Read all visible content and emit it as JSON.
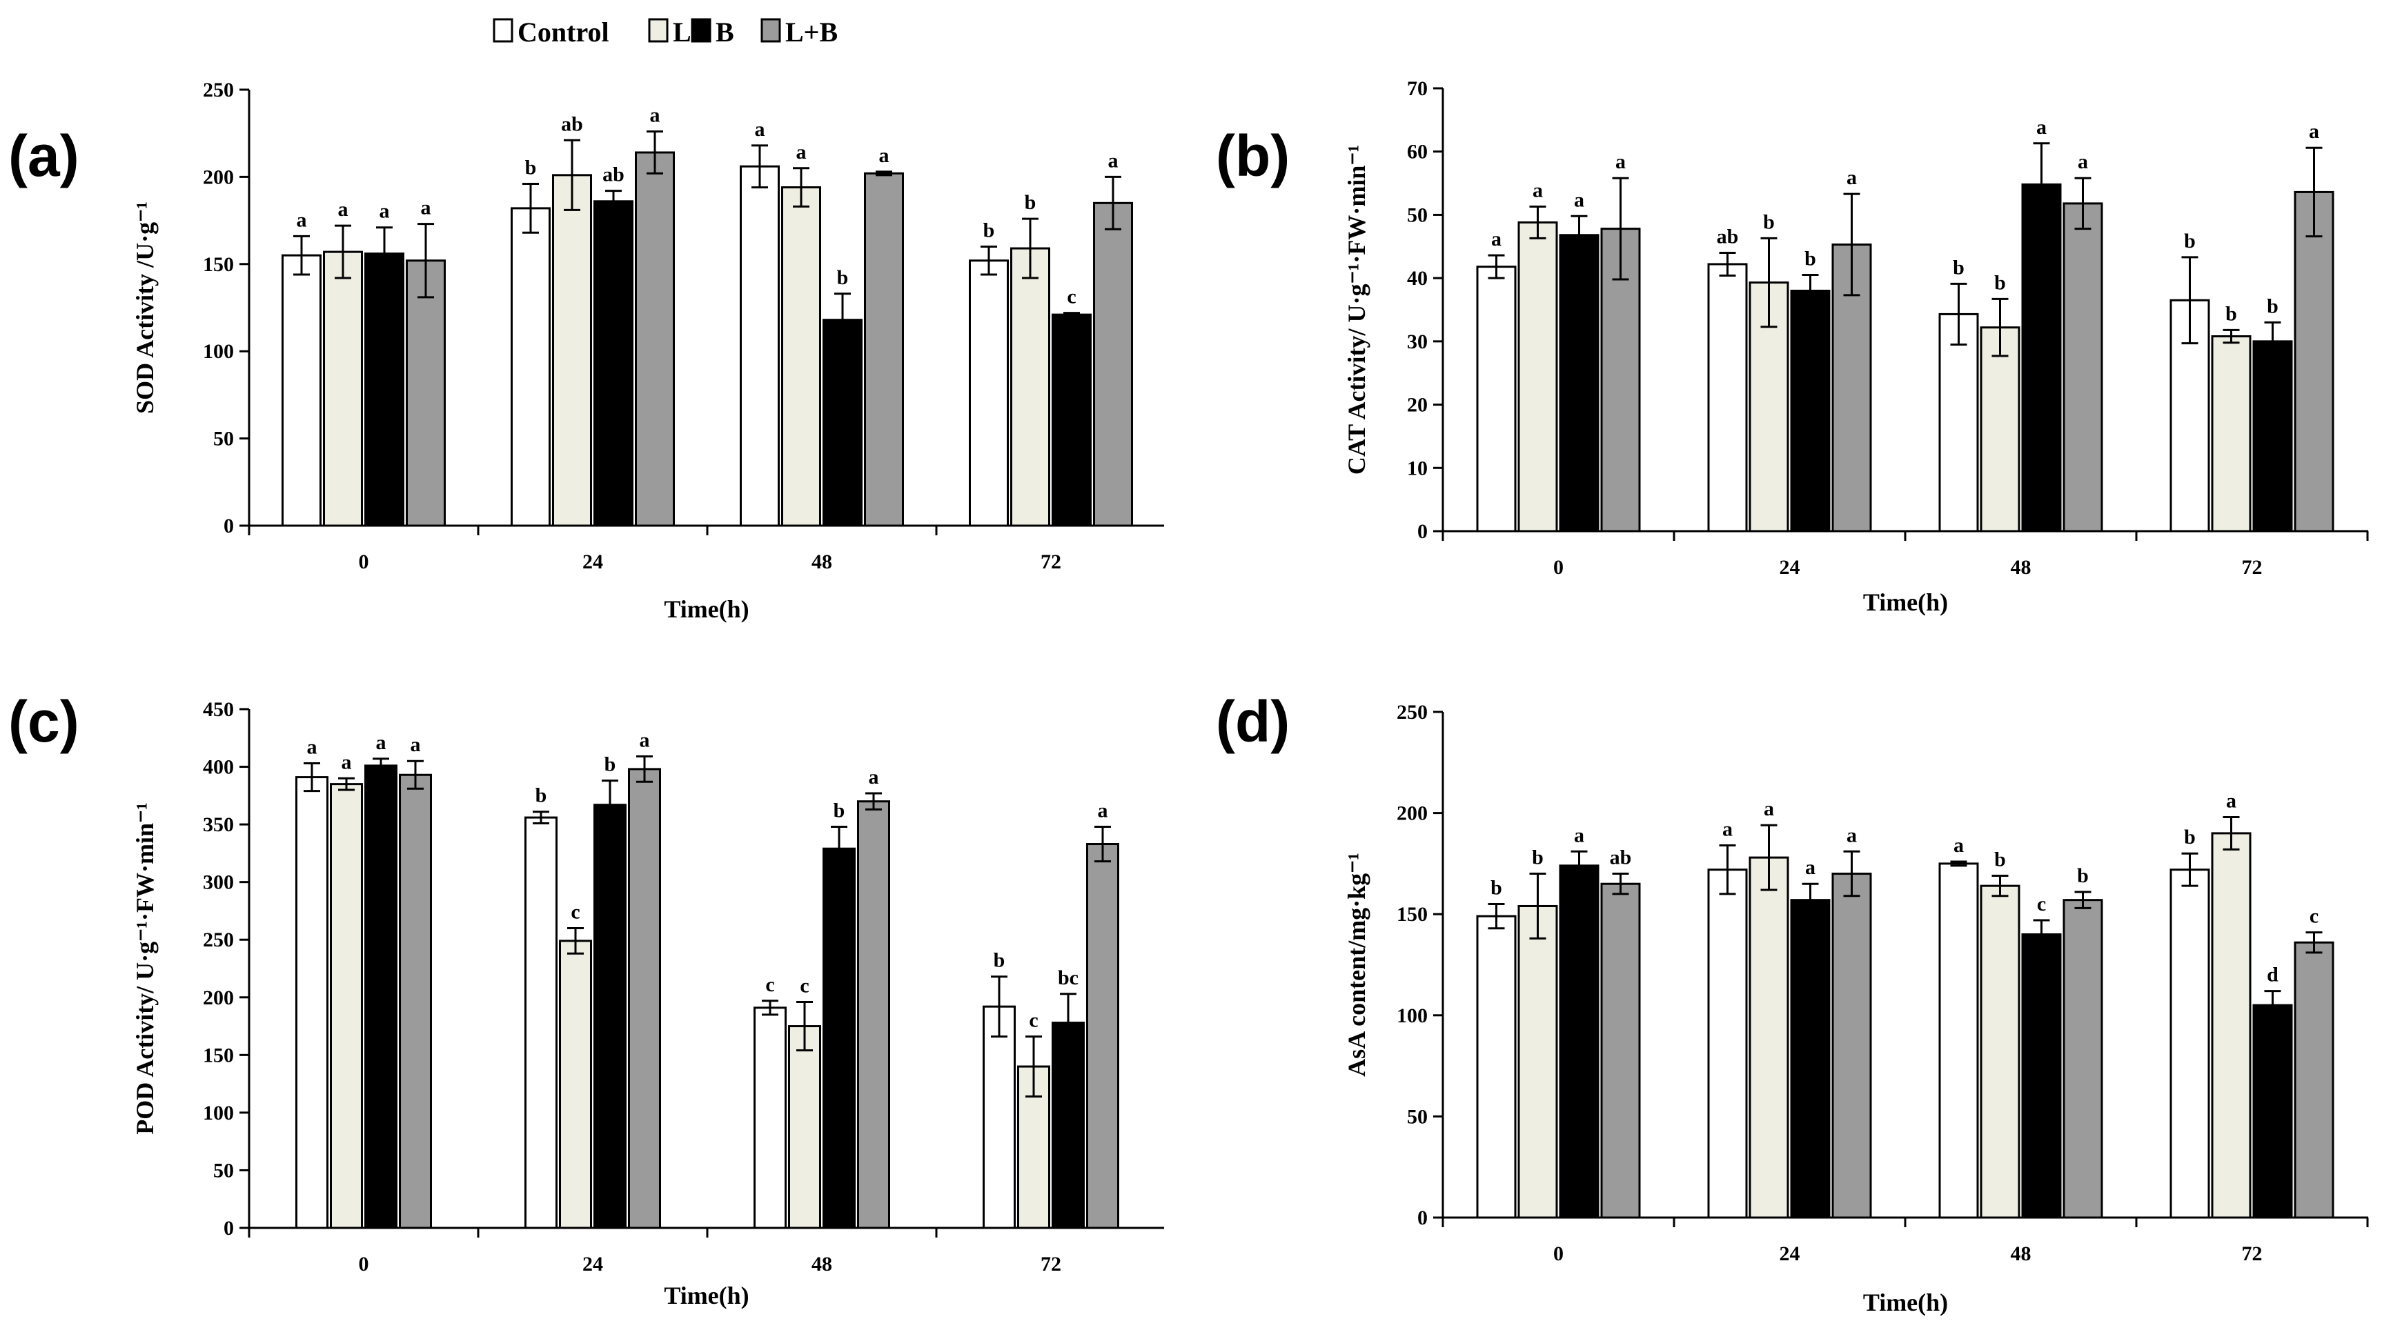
{
  "legend": {
    "entries": [
      "Control",
      "L",
      "B",
      "L+B"
    ]
  },
  "colors": {
    "Control": "#ffffff",
    "L": "#eeeee2",
    "B": "#000000",
    "L+B": "#9b9b9b",
    "stroke": "#000000"
  },
  "chart_data": [
    {
      "type": "bar",
      "panel_label": "(a)",
      "title": "",
      "xlabel": "Time(h)",
      "ylabel": "SOD Activity /U·g⁻¹",
      "categories": [
        "0",
        "24",
        "48",
        "72"
      ],
      "ylim": [
        0,
        250
      ],
      "yticks": [
        0,
        50,
        100,
        150,
        200,
        250
      ],
      "grid": false,
      "series": [
        {
          "name": "Control",
          "values": [
            155,
            182,
            206,
            152
          ],
          "errors": [
            11,
            14,
            12,
            8
          ],
          "letters": [
            "a",
            "b",
            "a",
            "b"
          ]
        },
        {
          "name": "L",
          "values": [
            157,
            201,
            194,
            159
          ],
          "errors": [
            15,
            20,
            11,
            17
          ],
          "letters": [
            "a",
            "ab",
            "a",
            "b"
          ]
        },
        {
          "name": "B",
          "values": [
            156,
            186,
            118,
            121
          ],
          "errors": [
            15,
            6,
            15,
            1
          ],
          "letters": [
            "a",
            "ab",
            "b",
            "c"
          ]
        },
        {
          "name": "L+B",
          "values": [
            152,
            214,
            202,
            185
          ],
          "errors": [
            21,
            12,
            1,
            15
          ],
          "letters": [
            "a",
            "a",
            "a",
            "a"
          ]
        }
      ]
    },
    {
      "type": "bar",
      "panel_label": "(b)",
      "title": "",
      "xlabel": "Time(h)",
      "ylabel": "CAT Activity/ U·g⁻¹·FW·min⁻¹",
      "categories": [
        "0",
        "24",
        "48",
        "72"
      ],
      "ylim": [
        0,
        70
      ],
      "yticks": [
        0,
        10,
        20,
        30,
        40,
        50,
        60,
        70
      ],
      "grid": false,
      "series": [
        {
          "name": "Control",
          "values": [
            41.8,
            42.2,
            34.3,
            36.5
          ],
          "errors": [
            1.8,
            1.8,
            4.8,
            6.8
          ],
          "letters": [
            "a",
            "ab",
            "b",
            "b"
          ]
        },
        {
          "name": "L",
          "values": [
            48.8,
            39.3,
            32.2,
            30.8
          ],
          "errors": [
            2.5,
            7,
            4.5,
            1
          ],
          "letters": [
            "a",
            "b",
            "b",
            "b"
          ]
        },
        {
          "name": "B",
          "values": [
            46.8,
            38,
            54.8,
            30
          ],
          "errors": [
            3,
            2.5,
            6.5,
            3
          ],
          "letters": [
            "a",
            "b",
            "a",
            "b"
          ]
        },
        {
          "name": "L+B",
          "values": [
            47.8,
            45.3,
            51.8,
            53.6
          ],
          "errors": [
            8,
            8,
            4,
            7
          ],
          "letters": [
            "a",
            "a",
            "a",
            "a"
          ]
        }
      ]
    },
    {
      "type": "bar",
      "panel_label": "(c)",
      "title": "",
      "xlabel": "Time(h)",
      "ylabel": "POD Activity/ U·g⁻¹·FW·min⁻¹",
      "categories": [
        "0",
        "24",
        "48",
        "72"
      ],
      "ylim": [
        0,
        450
      ],
      "yticks": [
        0,
        50,
        100,
        150,
        200,
        250,
        300,
        350,
        400,
        450
      ],
      "grid": false,
      "series": [
        {
          "name": "Control",
          "values": [
            391,
            356,
            191,
            192
          ],
          "errors": [
            12,
            5,
            6,
            26
          ],
          "letters": [
            "a",
            "b",
            "c",
            "b"
          ]
        },
        {
          "name": "L",
          "values": [
            385,
            249,
            175,
            140
          ],
          "errors": [
            5,
            11,
            21,
            26
          ],
          "letters": [
            "a",
            "c",
            "c",
            "c"
          ]
        },
        {
          "name": "B",
          "values": [
            401,
            367,
            329,
            178
          ],
          "errors": [
            6,
            21,
            19,
            25
          ],
          "letters": [
            "a",
            "b",
            "b",
            "bc"
          ]
        },
        {
          "name": "L+B",
          "values": [
            393,
            398,
            370,
            333
          ],
          "errors": [
            12,
            11,
            7,
            15
          ],
          "letters": [
            "a",
            "a",
            "a",
            "a"
          ]
        }
      ]
    },
    {
      "type": "bar",
      "panel_label": "(d)",
      "title": "",
      "xlabel": "Time(h)",
      "ylabel": "AsA content/mg·kg⁻¹",
      "categories": [
        "0",
        "24",
        "48",
        "72"
      ],
      "ylim": [
        0,
        250
      ],
      "yticks": [
        0,
        50,
        100,
        150,
        200,
        250
      ],
      "grid": false,
      "series": [
        {
          "name": "Control",
          "values": [
            149,
            172,
            175,
            172
          ],
          "errors": [
            6,
            12,
            1,
            8
          ],
          "letters": [
            "b",
            "a",
            "a",
            "b"
          ]
        },
        {
          "name": "L",
          "values": [
            154,
            178,
            164,
            190
          ],
          "errors": [
            16,
            16,
            5,
            8
          ],
          "letters": [
            "b",
            "a",
            "b",
            "a"
          ]
        },
        {
          "name": "B",
          "values": [
            174,
            157,
            140,
            105
          ],
          "errors": [
            7,
            8,
            7,
            7
          ],
          "letters": [
            "a",
            "a",
            "c",
            "d"
          ]
        },
        {
          "name": "L+B",
          "values": [
            165,
            170,
            157,
            136
          ],
          "errors": [
            5,
            11,
            4,
            5
          ],
          "letters": [
            "ab",
            "a",
            "b",
            "c"
          ]
        }
      ]
    }
  ]
}
